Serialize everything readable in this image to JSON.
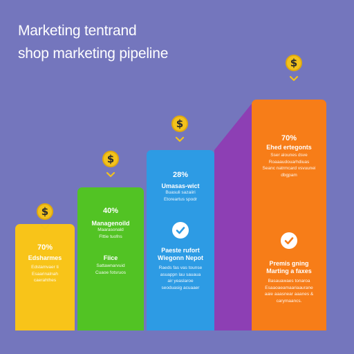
{
  "title_line_1": "Marketing tentrand",
  "title_line_2": "shop marketing pipeline",
  "colors": {
    "background": "#7476bd",
    "bar_1": "#f8c419",
    "bar_2": "#52c324",
    "bar_3": "#2d9be4",
    "bar_4": "#f77d18",
    "connector": "#8d3fb4",
    "coin": "#f3c21c"
  },
  "icons": {
    "coin": "dollar-coin-icon",
    "chevron": "chevron-down-icon",
    "check": "check-circle-icon"
  },
  "chart_data": {
    "type": "bar",
    "categories": [
      "Edsharmes",
      "Fiice",
      "Paeste rufort",
      "Premis gning"
    ],
    "values": [
      70,
      40,
      28,
      70
    ],
    "value_labels": [
      "70%",
      "40%",
      "28%",
      "70%"
    ],
    "heights_relative": [
      0.46,
      0.62,
      0.78,
      1.0
    ],
    "headings": [
      "",
      "Managenoild",
      "Umasas-wict",
      "Ehed ertegonts"
    ],
    "secondary_labels": [
      "",
      "Fiice",
      "Wiegonn Nepot",
      "Marting a faxes"
    ],
    "has_check": [
      false,
      false,
      true,
      true
    ]
  }
}
